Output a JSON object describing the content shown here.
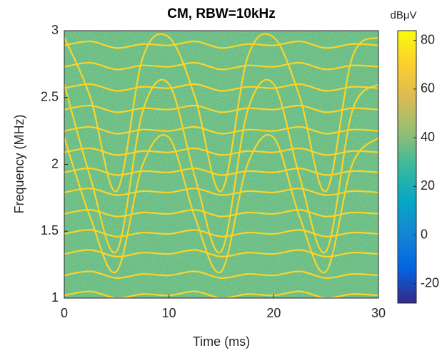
{
  "chart_data": {
    "type": "spectrogram",
    "title": "CM, RBW=10kHz",
    "xlabel": "Time (ms)",
    "ylabel": "Frequency (MHz)",
    "xlim": [
      0,
      30
    ],
    "ylim": [
      1,
      3
    ],
    "xticks": [
      0,
      10,
      20,
      30
    ],
    "yticks": [
      1,
      1.5,
      2,
      2.5,
      3
    ],
    "colorbar": {
      "label": "dBμV",
      "clim": [
        -28,
        84
      ],
      "ticks": [
        -20,
        0,
        20,
        40,
        60,
        80
      ],
      "colormap": [
        "#352a87",
        "#0363e1",
        "#1485d4",
        "#06a7c6",
        "#38b99e",
        "#92bf73",
        "#d9ba56",
        "#fcce2e",
        "#f9fb0e"
      ]
    },
    "background_level": 35,
    "track_level": 72,
    "x": [
      0,
      2.5,
      5,
      7.5,
      10,
      12.5,
      15,
      17.5,
      20,
      22.5,
      25,
      27.5,
      30
    ],
    "series": [
      {
        "values": [
          1.02,
          1.05,
          1.0,
          1.03,
          1.02,
          1.05,
          1.0,
          1.03,
          1.02,
          1.05,
          1.0,
          1.03,
          1.02
        ]
      },
      {
        "values": [
          1.17,
          1.2,
          1.15,
          1.18,
          1.17,
          1.2,
          1.15,
          1.18,
          1.17,
          1.2,
          1.15,
          1.18,
          1.17
        ]
      },
      {
        "values": [
          1.33,
          1.36,
          1.31,
          1.34,
          1.33,
          1.36,
          1.31,
          1.34,
          1.33,
          1.36,
          1.31,
          1.34,
          1.33
        ]
      },
      {
        "values": [
          1.48,
          1.51,
          1.46,
          1.49,
          1.48,
          1.51,
          1.46,
          1.49,
          1.48,
          1.51,
          1.46,
          1.49,
          1.48
        ]
      },
      {
        "values": [
          1.63,
          1.66,
          1.61,
          1.64,
          1.63,
          1.66,
          1.61,
          1.64,
          1.63,
          1.66,
          1.61,
          1.64,
          1.63
        ]
      },
      {
        "values": [
          1.79,
          1.82,
          1.77,
          1.8,
          1.79,
          1.82,
          1.77,
          1.8,
          1.79,
          1.82,
          1.77,
          1.8,
          1.79
        ]
      },
      {
        "values": [
          1.94,
          1.97,
          1.92,
          1.95,
          1.94,
          1.97,
          1.92,
          1.95,
          1.94,
          1.97,
          1.92,
          1.95,
          1.94
        ]
      },
      {
        "values": [
          2.09,
          2.12,
          2.07,
          2.1,
          2.09,
          2.12,
          2.07,
          2.1,
          2.09,
          2.12,
          2.07,
          2.1,
          2.09
        ]
      },
      {
        "values": [
          2.25,
          2.28,
          2.23,
          2.26,
          2.25,
          2.28,
          2.23,
          2.26,
          2.25,
          2.28,
          2.23,
          2.26,
          2.25
        ]
      },
      {
        "values": [
          2.41,
          2.44,
          2.39,
          2.42,
          2.41,
          2.44,
          2.39,
          2.42,
          2.41,
          2.44,
          2.39,
          2.42,
          2.41
        ]
      },
      {
        "values": [
          2.57,
          2.6,
          2.55,
          2.58,
          2.57,
          2.6,
          2.55,
          2.58,
          2.57,
          2.6,
          2.55,
          2.58,
          2.57
        ]
      },
      {
        "values": [
          2.73,
          2.76,
          2.71,
          2.74,
          2.73,
          2.76,
          2.71,
          2.74,
          2.73,
          2.76,
          2.71,
          2.74,
          2.73
        ]
      },
      {
        "values": [
          2.89,
          2.92,
          2.87,
          2.9,
          2.89,
          2.92,
          2.87,
          2.9,
          2.89,
          2.92,
          2.87,
          2.9,
          2.89
        ]
      },
      {
        "values": [
          2.6,
          1.9,
          1.35,
          2.4,
          2.6,
          1.9,
          1.35,
          2.4,
          2.6,
          1.9,
          1.35,
          2.4,
          2.6
        ]
      },
      {
        "values": [
          2.95,
          2.5,
          1.8,
          2.8,
          2.95,
          2.5,
          1.8,
          2.8,
          2.95,
          2.5,
          1.8,
          2.8,
          2.95
        ]
      },
      {
        "values": [
          2.2,
          1.6,
          1.2,
          2.0,
          2.2,
          1.6,
          1.2,
          2.0,
          2.2,
          1.6,
          1.2,
          2.0,
          2.2
        ]
      }
    ]
  }
}
